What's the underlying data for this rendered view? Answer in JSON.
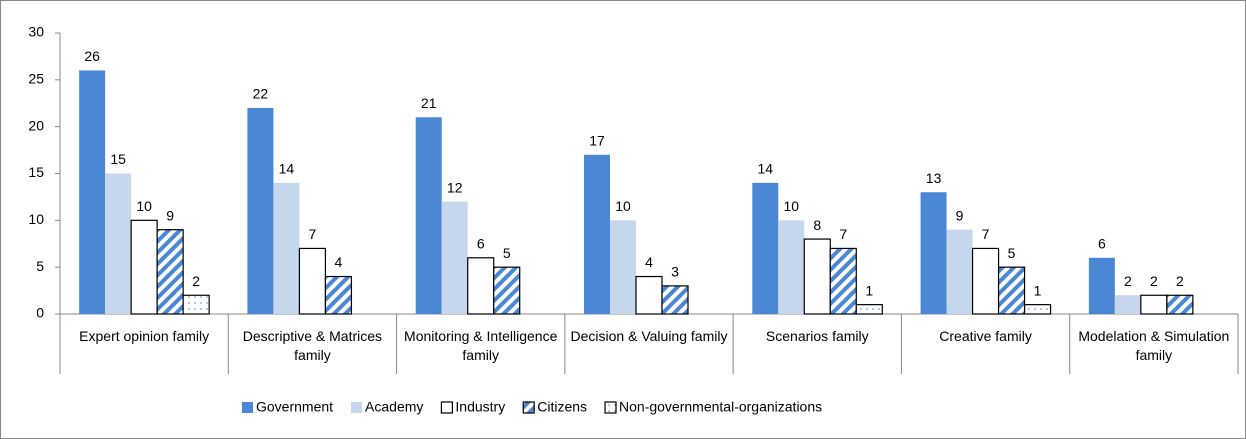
{
  "chart_data": {
    "type": "bar",
    "categories": [
      "Expert opinion family",
      "Descriptive & Matrices family",
      "Monitoring & Intelligence family",
      "Decision & Valuing family",
      "Scenarios family",
      "Creative family",
      "Modelation & Simulation family"
    ],
    "series": [
      {
        "name": "Government",
        "color": "#4a87d5",
        "values": [
          26,
          22,
          21,
          17,
          14,
          13,
          6
        ]
      },
      {
        "name": "Academy",
        "color": "#c6d6ec",
        "values": [
          15,
          14,
          12,
          10,
          10,
          9,
          2
        ]
      },
      {
        "name": "Industry",
        "color": "#ffffff",
        "values": [
          10,
          7,
          6,
          4,
          8,
          7,
          2
        ]
      },
      {
        "name": "Citizens",
        "color": "#4a87d5",
        "pattern": "diagonal",
        "values": [
          9,
          4,
          5,
          3,
          7,
          5,
          2
        ]
      },
      {
        "name": "Non-governmental-organizations",
        "color": "#4a87d5",
        "pattern": "dots",
        "values": [
          2,
          null,
          null,
          null,
          1,
          1,
          null
        ]
      }
    ],
    "ylim": [
      0,
      30
    ],
    "yticks": [
      0,
      5,
      10,
      15,
      20,
      25,
      30
    ],
    "grid": false,
    "legend": "bottom"
  }
}
